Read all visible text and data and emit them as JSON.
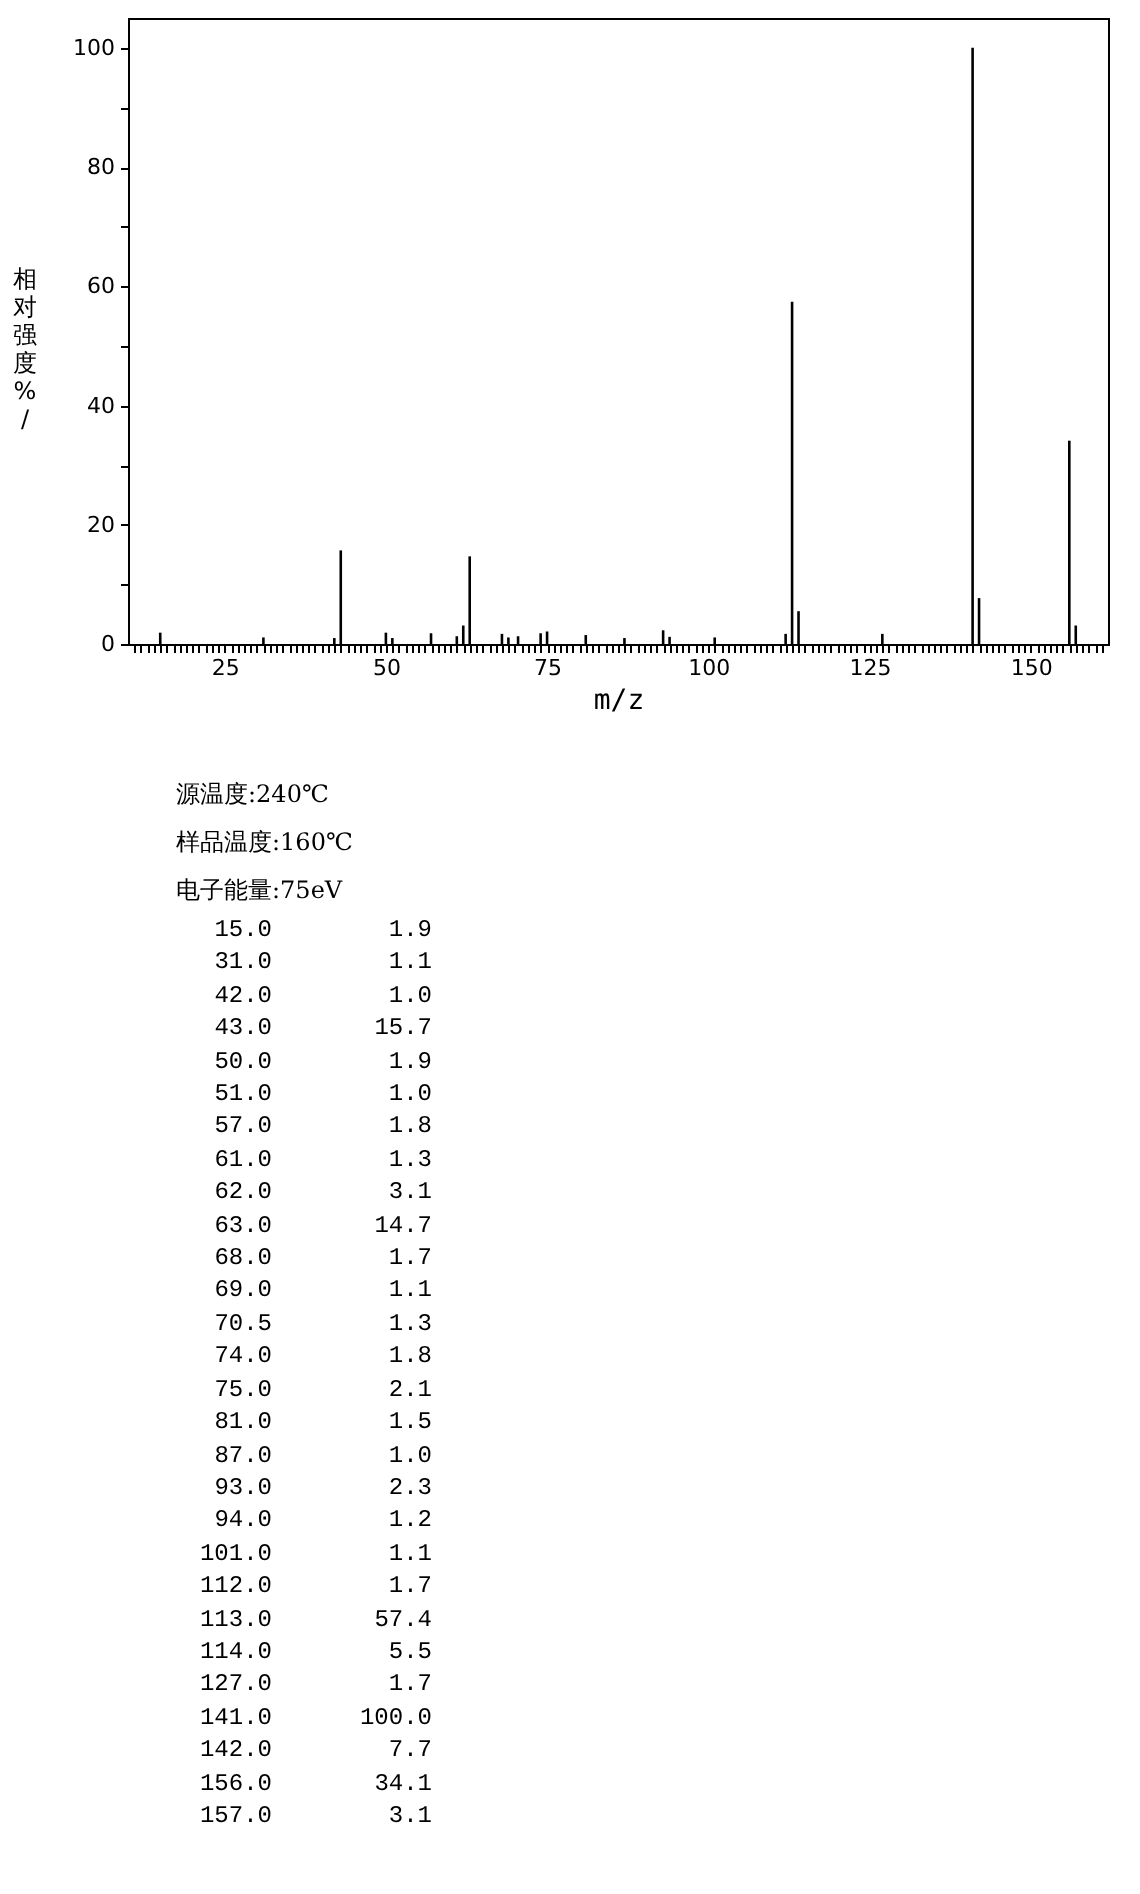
{
  "chart_data": [
    {
      "type": "bar",
      "xlabel": "m/z",
      "ylabel": "相对强度%/",
      "color": "#000000",
      "x": [
        15,
        31,
        42,
        43,
        50,
        51,
        57,
        61,
        62,
        63,
        68,
        69,
        70.5,
        74,
        75,
        81,
        87,
        93,
        94,
        101,
        112,
        113,
        114,
        127,
        141,
        142,
        156,
        157
      ],
      "values": [
        1.9,
        1.1,
        1.0,
        15.7,
        1.9,
        1.0,
        1.8,
        1.3,
        3.1,
        14.7,
        1.7,
        1.1,
        1.3,
        1.8,
        2.1,
        1.5,
        1.0,
        2.3,
        1.2,
        1.1,
        1.7,
        57.4,
        5.5,
        1.7,
        100.0,
        7.7,
        34.1,
        3.1
      ],
      "xlim": [
        10,
        162
      ],
      "ylim": [
        0,
        105
      ],
      "yticks": [
        0,
        {
          "value": 10,
          "label": null
        },
        20,
        {
          "value": 30,
          "label": null
        },
        40,
        {
          "value": 50,
          "label": null
        },
        60,
        {
          "value": 70,
          "label": null
        },
        80,
        {
          "value": 90,
          "label": null
        },
        100
      ],
      "xticks": [
        {
          "value": 11,
          "label": null
        },
        {
          "value": 12,
          "label": null
        },
        {
          "value": 13,
          "label": null
        },
        {
          "value": 14,
          "label": null
        },
        {
          "value": 15,
          "label": null
        },
        {
          "value": 16,
          "label": null
        },
        {
          "value": 17,
          "label": null
        },
        {
          "value": 18,
          "label": null
        },
        {
          "value": 19,
          "label": null
        },
        {
          "value": 20,
          "label": null
        },
        {
          "value": 21,
          "label": null
        },
        {
          "value": 22,
          "label": null
        },
        {
          "value": 23,
          "label": null
        },
        {
          "value": 24,
          "label": null
        },
        25,
        {
          "value": 26,
          "label": null
        },
        {
          "value": 27,
          "label": null
        },
        {
          "value": 28,
          "label": null
        },
        {
          "value": 29,
          "label": null
        },
        {
          "value": 30,
          "label": null
        },
        {
          "value": 31,
          "label": null
        },
        {
          "value": 32,
          "label": null
        },
        {
          "value": 33,
          "label": null
        },
        {
          "value": 34,
          "label": null
        },
        {
          "value": 35,
          "label": null
        },
        {
          "value": 36,
          "label": null
        },
        {
          "value": 37,
          "label": null
        },
        {
          "value": 38,
          "label": null
        },
        {
          "value": 39,
          "label": null
        },
        {
          "value": 40,
          "label": null
        },
        {
          "value": 41,
          "label": null
        },
        {
          "value": 42,
          "label": null
        },
        {
          "value": 43,
          "label": null
        },
        {
          "value": 44,
          "label": null
        },
        {
          "value": 45,
          "label": null
        },
        {
          "value": 46,
          "label": null
        },
        {
          "value": 47,
          "label": null
        },
        {
          "value": 48,
          "label": null
        },
        {
          "value": 49,
          "label": null
        },
        50,
        {
          "value": 51,
          "label": null
        },
        {
          "value": 52,
          "label": null
        },
        {
          "value": 53,
          "label": null
        },
        {
          "value": 54,
          "label": null
        },
        {
          "value": 55,
          "label": null
        },
        {
          "value": 56,
          "label": null
        },
        {
          "value": 57,
          "label": null
        },
        {
          "value": 58,
          "label": null
        },
        {
          "value": 59,
          "label": null
        },
        {
          "value": 60,
          "label": null
        },
        {
          "value": 61,
          "label": null
        },
        {
          "value": 62,
          "label": null
        },
        {
          "value": 63,
          "label": null
        },
        {
          "value": 64,
          "label": null
        },
        {
          "value": 65,
          "label": null
        },
        {
          "value": 66,
          "label": null
        },
        {
          "value": 67,
          "label": null
        },
        {
          "value": 68,
          "label": null
        },
        {
          "value": 69,
          "label": null
        },
        {
          "value": 70,
          "label": null
        },
        {
          "value": 71,
          "label": null
        },
        {
          "value": 72,
          "label": null
        },
        {
          "value": 73,
          "label": null
        },
        {
          "value": 74,
          "label": null
        },
        75,
        {
          "value": 76,
          "label": null
        },
        {
          "value": 77,
          "label": null
        },
        {
          "value": 78,
          "label": null
        },
        {
          "value": 79,
          "label": null
        },
        {
          "value": 80,
          "label": null
        },
        {
          "value": 81,
          "label": null
        },
        {
          "value": 82,
          "label": null
        },
        {
          "value": 83,
          "label": null
        },
        {
          "value": 84,
          "label": null
        },
        {
          "value": 85,
          "label": null
        },
        {
          "value": 86,
          "label": null
        },
        {
          "value": 87,
          "label": null
        },
        {
          "value": 88,
          "label": null
        },
        {
          "value": 89,
          "label": null
        },
        {
          "value": 90,
          "label": null
        },
        {
          "value": 91,
          "label": null
        },
        {
          "value": 92,
          "label": null
        },
        {
          "value": 93,
          "label": null
        },
        {
          "value": 94,
          "label": null
        },
        {
          "value": 95,
          "label": null
        },
        {
          "value": 96,
          "label": null
        },
        {
          "value": 97,
          "label": null
        },
        {
          "value": 98,
          "label": null
        },
        {
          "value": 99,
          "label": null
        },
        100,
        {
          "value": 101,
          "label": null
        },
        {
          "value": 102,
          "label": null
        },
        {
          "value": 103,
          "label": null
        },
        {
          "value": 104,
          "label": null
        },
        {
          "value": 105,
          "label": null
        },
        {
          "value": 106,
          "label": null
        },
        {
          "value": 107,
          "label": null
        },
        {
          "value": 108,
          "label": null
        },
        {
          "value": 109,
          "label": null
        },
        {
          "value": 110,
          "label": null
        },
        {
          "value": 111,
          "label": null
        },
        {
          "value": 112,
          "label": null
        },
        {
          "value": 113,
          "label": null
        },
        {
          "value": 114,
          "label": null
        },
        {
          "value": 115,
          "label": null
        },
        {
          "value": 116,
          "label": null
        },
        {
          "value": 117,
          "label": null
        },
        {
          "value": 118,
          "label": null
        },
        {
          "value": 119,
          "label": null
        },
        {
          "value": 120,
          "label": null
        },
        {
          "value": 121,
          "label": null
        },
        {
          "value": 122,
          "label": null
        },
        {
          "value": 123,
          "label": null
        },
        {
          "value": 124,
          "label": null
        },
        125,
        {
          "value": 126,
          "label": null
        },
        {
          "value": 127,
          "label": null
        },
        {
          "value": 128,
          "label": null
        },
        {
          "value": 129,
          "label": null
        },
        {
          "value": 130,
          "label": null
        },
        {
          "value": 131,
          "label": null
        },
        {
          "value": 132,
          "label": null
        },
        {
          "value": 133,
          "label": null
        },
        {
          "value": 134,
          "label": null
        },
        {
          "value": 135,
          "label": null
        },
        {
          "value": 136,
          "label": null
        },
        {
          "value": 137,
          "label": null
        },
        {
          "value": 138,
          "label": null
        },
        {
          "value": 139,
          "label": null
        },
        {
          "value": 140,
          "label": null
        },
        {
          "value": 141,
          "label": null
        },
        {
          "value": 142,
          "label": null
        },
        {
          "value": 143,
          "label": null
        },
        {
          "value": 144,
          "label": null
        },
        {
          "value": 145,
          "label": null
        },
        {
          "value": 146,
          "label": null
        },
        {
          "value": 147,
          "label": null
        },
        {
          "value": 148,
          "label": null
        },
        {
          "value": 149,
          "label": null
        },
        150,
        {
          "value": 151,
          "label": null
        },
        {
          "value": 152,
          "label": null
        },
        {
          "value": 153,
          "label": null
        },
        {
          "value": 154,
          "label": null
        },
        {
          "value": 155,
          "label": null
        },
        {
          "value": 156,
          "label": null
        },
        {
          "value": 157,
          "label": null
        },
        {
          "value": 158,
          "label": null
        },
        {
          "value": 159,
          "label": null
        },
        {
          "value": 160,
          "label": null
        },
        {
          "value": 161,
          "label": null
        }
      ],
      "annotations": [
        "源温度:240℃",
        "样品温度:160℃",
        "电子能量:75eV"
      ]
    },
    {
      "type": "other",
      "categories": [
        "15.0",
        "31.0",
        "42.0",
        "43.0",
        "50.0",
        "51.0",
        "57.0",
        "61.0",
        "62.0",
        "63.0",
        "68.0",
        "69.0",
        "70.5",
        "74.0",
        "75.0",
        "81.0",
        "87.0",
        "93.0",
        "94.0",
        "101.0",
        "112.0",
        "113.0",
        "114.0",
        "127.0",
        "141.0",
        "142.0",
        "156.0",
        "157.0"
      ],
      "value_labels": [
        "1.9",
        "1.1",
        "1.0",
        "15.7",
        "1.9",
        "1.0",
        "1.8",
        "1.3",
        "3.1",
        "14.7",
        "1.7",
        "1.1",
        "1.3",
        "1.8",
        "2.1",
        "1.5",
        "1.0",
        "2.3",
        "1.2",
        "1.1",
        "1.7",
        "57.4",
        "5.5",
        "1.7",
        "100.0",
        "7.7",
        "34.1",
        "3.1"
      ]
    }
  ]
}
